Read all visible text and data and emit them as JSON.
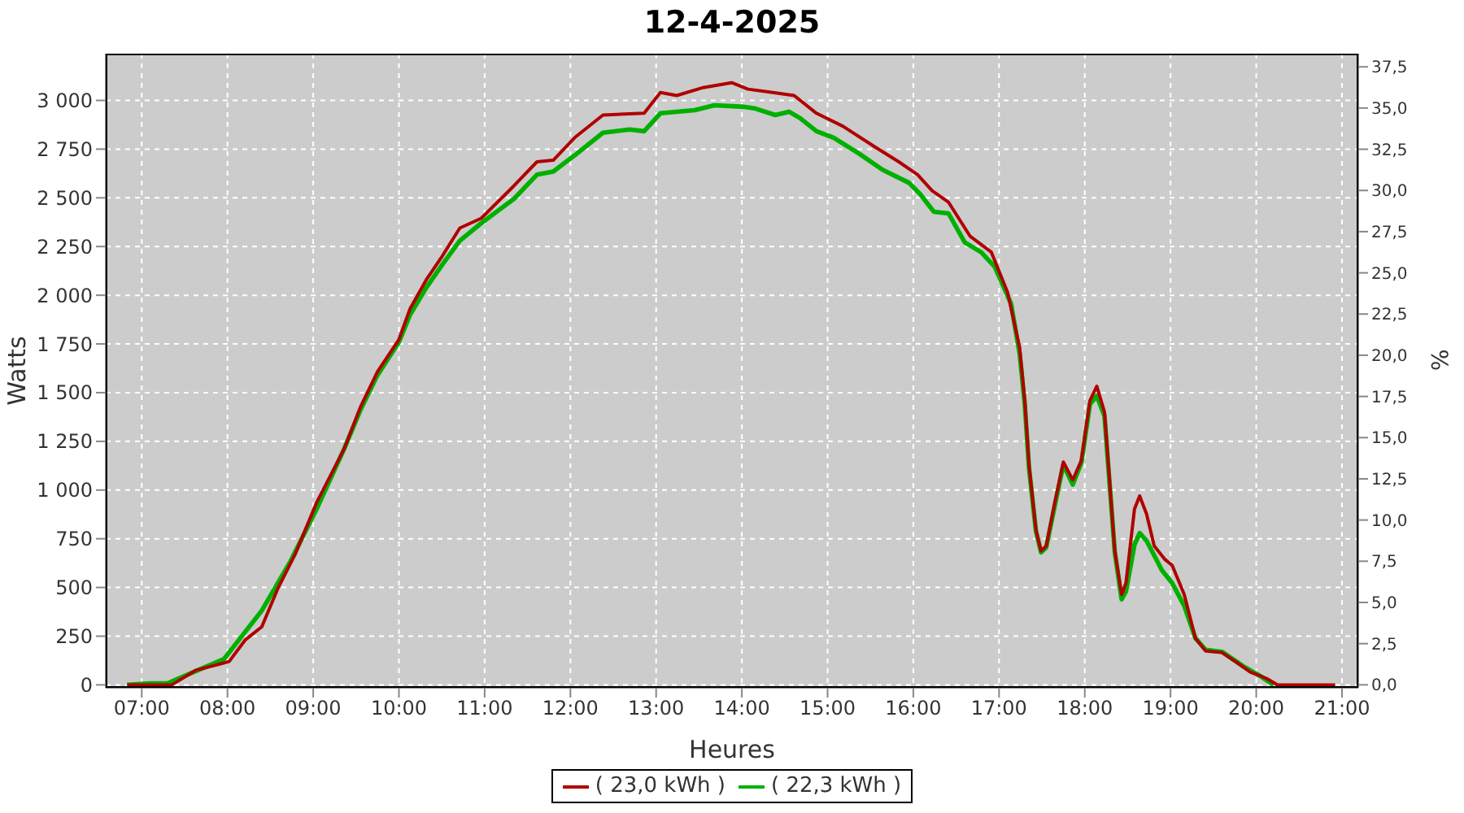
{
  "chart_data": {
    "type": "line",
    "title": "12-4-2025",
    "xlabel": "Heures",
    "ylabel": "Watts",
    "y2label": "%",
    "xlim": [
      6.58,
      21.19
    ],
    "xticks": [
      {
        "value": 7,
        "label": "07:00"
      },
      {
        "value": 8,
        "label": "08:00"
      },
      {
        "value": 9,
        "label": "09:00"
      },
      {
        "value": 10,
        "label": "10:00"
      },
      {
        "value": 11,
        "label": "11:00"
      },
      {
        "value": 12,
        "label": "12:00"
      },
      {
        "value": 13,
        "label": "13:00"
      },
      {
        "value": 14,
        "label": "14:00"
      },
      {
        "value": 15,
        "label": "15:00"
      },
      {
        "value": 16,
        "label": "16:00"
      },
      {
        "value": 17,
        "label": "17:00"
      },
      {
        "value": 18,
        "label": "18:00"
      },
      {
        "value": 19,
        "label": "19:00"
      },
      {
        "value": 20,
        "label": "20:00"
      },
      {
        "value": 21,
        "label": "21:00"
      }
    ],
    "ylim": [
      -15,
      3240
    ],
    "yticks": [
      0,
      250,
      500,
      750,
      {
        "value": 1000,
        "label": "1 000"
      },
      {
        "value": 1250,
        "label": "1 250"
      },
      {
        "value": 1500,
        "label": "1 500"
      },
      {
        "value": 1750,
        "label": "1 750"
      },
      {
        "value": 2000,
        "label": "2 000"
      },
      {
        "value": 2250,
        "label": "2 250"
      },
      {
        "value": 2500,
        "label": "2 500"
      },
      {
        "value": 2750,
        "label": "2 750"
      },
      {
        "value": 3000,
        "label": "3 000"
      }
    ],
    "y2lim": [
      -0.18,
      38.3
    ],
    "y2ticks": [
      {
        "value": 0,
        "label": "0,0"
      },
      {
        "value": 2.5,
        "label": "2,5"
      },
      {
        "value": 5,
        "label": "5,0"
      },
      {
        "value": 7.5,
        "label": "7,5"
      },
      {
        "value": 10,
        "label": "10,0"
      },
      {
        "value": 12.5,
        "label": "12,5"
      },
      {
        "value": 15,
        "label": "15,0"
      },
      {
        "value": 17.5,
        "label": "17,5"
      },
      {
        "value": 20,
        "label": "20,0"
      },
      {
        "value": 22.5,
        "label": "22,5"
      },
      {
        "value": 25,
        "label": "25,0"
      },
      {
        "value": 27.5,
        "label": "27,5"
      },
      {
        "value": 30,
        "label": "30,0"
      },
      {
        "value": 32.5,
        "label": "32,5"
      },
      {
        "value": 35,
        "label": "35,0"
      },
      {
        "value": 37.5,
        "label": "37,5"
      }
    ],
    "grid": true,
    "legend": "bottom",
    "series": [
      {
        "name": "( 23,0 kWh )",
        "color": "#b00000",
        "x": [
          6.83,
          7.35,
          7.63,
          7.92,
          8.02,
          8.21,
          8.4,
          8.59,
          8.79,
          9.04,
          9.36,
          9.55,
          9.75,
          10.0,
          10.13,
          10.32,
          10.51,
          10.71,
          10.96,
          11.34,
          11.61,
          11.8,
          12.05,
          12.38,
          12.86,
          13.05,
          13.24,
          13.55,
          13.88,
          14.07,
          14.36,
          14.61,
          14.87,
          15.18,
          15.56,
          15.83,
          16.05,
          16.22,
          16.41,
          16.66,
          16.91,
          17.1,
          17.24,
          17.3,
          17.35,
          17.43,
          17.49,
          17.55,
          17.65,
          17.75,
          17.86,
          17.96,
          18.06,
          18.14,
          18.23,
          18.29,
          18.35,
          18.43,
          18.48,
          18.58,
          18.64,
          18.72,
          18.81,
          18.93,
          19.02,
          19.16,
          19.29,
          19.41,
          19.6,
          19.77,
          19.93,
          20.12,
          20.25,
          20.92
        ],
        "values": [
          0,
          0,
          75,
          108,
          120,
          232,
          298,
          497,
          671,
          936,
          1210,
          1425,
          1608,
          1773,
          1931,
          2080,
          2204,
          2345,
          2395,
          2561,
          2685,
          2693,
          2809,
          2925,
          2934,
          3041,
          3025,
          3066,
          3091,
          3058,
          3041,
          3025,
          2934,
          2867,
          2759,
          2685,
          2619,
          2536,
          2478,
          2304,
          2221,
          2014,
          1732,
          1459,
          1127,
          796,
          688,
          713,
          936,
          1144,
          1052,
          1152,
          1459,
          1533,
          1400,
          1044,
          688,
          464,
          522,
          903,
          970,
          878,
          713,
          646,
          613,
          464,
          240,
          174,
          166,
          116,
          66,
          33,
          0,
          0
        ]
      },
      {
        "name": "( 22,3 kWh )",
        "color": "#00b000",
        "x": [
          6.83,
          7.1,
          7.3,
          7.96,
          8.15,
          8.4,
          8.73,
          9.04,
          9.36,
          9.55,
          9.75,
          10.0,
          10.13,
          10.32,
          10.51,
          10.71,
          10.96,
          11.34,
          11.61,
          11.8,
          12.05,
          12.38,
          12.69,
          12.86,
          13.05,
          13.45,
          13.68,
          14.03,
          14.16,
          14.39,
          14.55,
          14.68,
          14.87,
          15.07,
          15.37,
          15.64,
          15.95,
          16.08,
          16.24,
          16.41,
          16.6,
          16.79,
          16.95,
          17.14,
          17.24,
          17.3,
          17.35,
          17.43,
          17.49,
          17.55,
          17.65,
          17.75,
          17.86,
          17.96,
          18.06,
          18.14,
          18.23,
          18.29,
          18.35,
          18.43,
          18.48,
          18.58,
          18.64,
          18.72,
          18.9,
          19.02,
          19.16,
          19.29,
          19.41,
          19.6,
          19.85,
          20.05,
          20.2
        ],
        "values": [
          0,
          8,
          8,
          133,
          240,
          381,
          630,
          903,
          1210,
          1410,
          1590,
          1760,
          1900,
          2040,
          2160,
          2280,
          2370,
          2494,
          2619,
          2635,
          2718,
          2834,
          2851,
          2842,
          2934,
          2950,
          2975,
          2967,
          2958,
          2925,
          2942,
          2909,
          2842,
          2809,
          2726,
          2644,
          2577,
          2519,
          2428,
          2420,
          2271,
          2221,
          2146,
          1956,
          1700,
          1440,
          1110,
          790,
          680,
          705,
          920,
          1130,
          1028,
          1140,
          1440,
          1483,
          1380,
          1030,
          680,
          439,
          480,
          720,
          779,
          740,
          588,
          522,
          406,
          240,
          180,
          170,
          95,
          45,
          0
        ]
      }
    ]
  }
}
